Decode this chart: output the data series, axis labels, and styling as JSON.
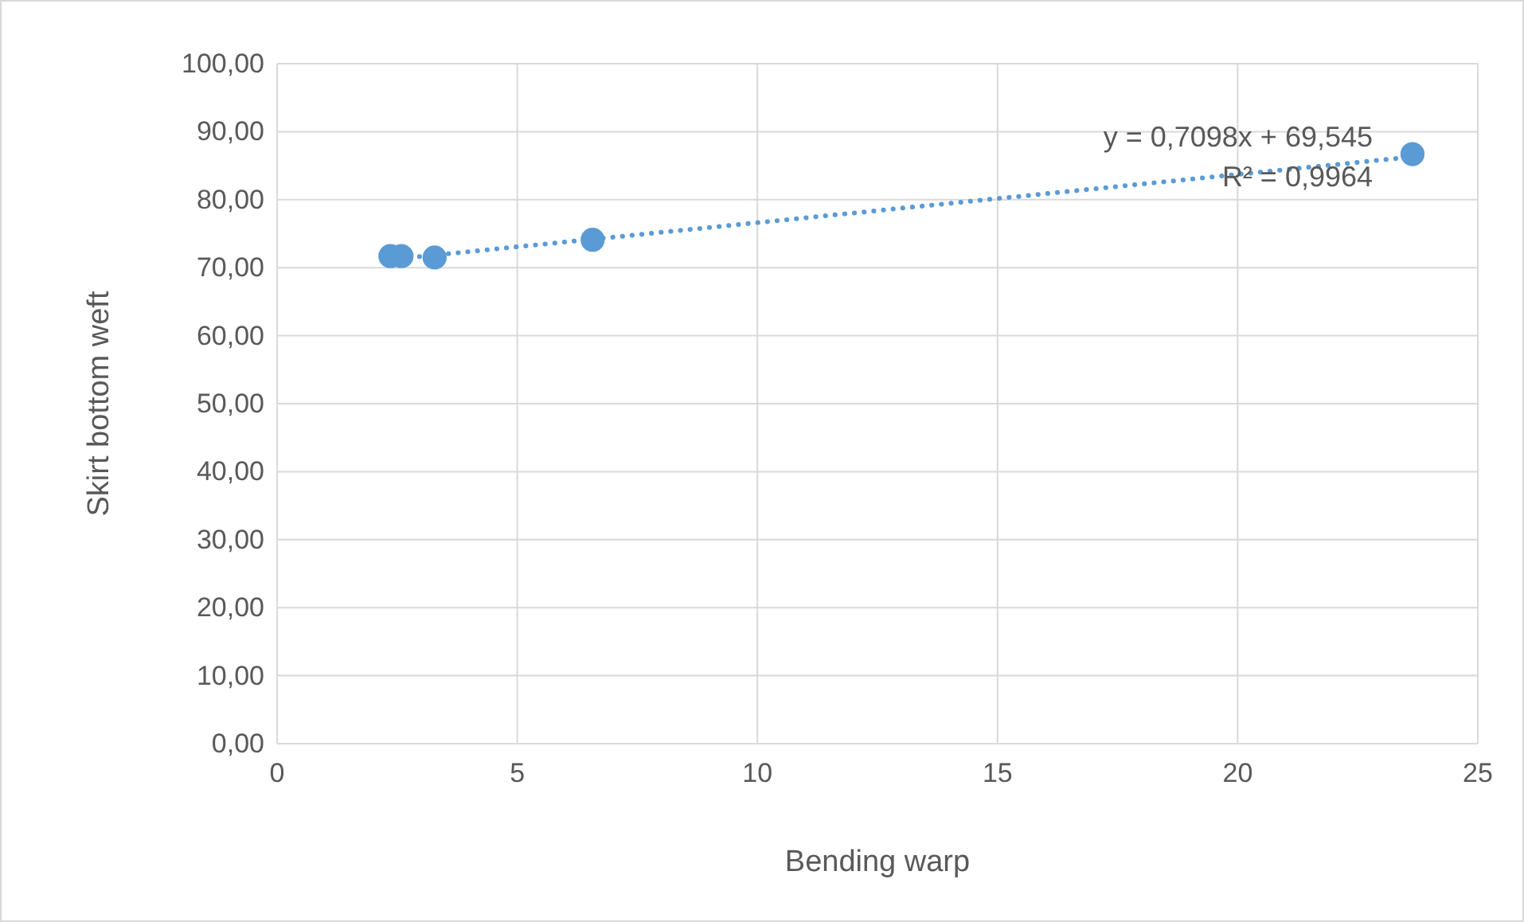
{
  "chart_data": {
    "type": "scatter",
    "xlabel": "Bending warp",
    "ylabel": "Skirt bottom weft",
    "xlim": [
      0,
      25
    ],
    "xticks": [
      0,
      5,
      10,
      15,
      20,
      25
    ],
    "ylim": [
      0,
      100
    ],
    "yticks": [
      {
        "value": 0,
        "label": "0,00"
      },
      {
        "value": 10,
        "label": "10,00"
      },
      {
        "value": 20,
        "label": "20,00"
      },
      {
        "value": 30,
        "label": "30,00"
      },
      {
        "value": 40,
        "label": "40,00"
      },
      {
        "value": 50,
        "label": "50,00"
      },
      {
        "value": 60,
        "label": "60,00"
      },
      {
        "value": 70,
        "label": "70,00"
      },
      {
        "value": 80,
        "label": "80,00"
      },
      {
        "value": 90,
        "label": "90,00"
      },
      {
        "value": 100,
        "label": "100,00"
      }
    ],
    "grid": true,
    "series": [
      {
        "marker": "circle",
        "color": "#5b9bd5",
        "x": [
          2.36,
          2.59,
          3.28,
          6.57,
          23.64
        ],
        "values": [
          71.7,
          71.7,
          71.5,
          74.1,
          86.7
        ]
      },
      {
        "type": "line",
        "color": "#5b9bd5",
        "line_style": "dotted",
        "x": [
          2.36,
          23.64
        ],
        "values": [
          71.2,
          86.3
        ]
      }
    ],
    "annotations": [
      "y = 0,7098x + 69,545",
      "R² = 0,9964"
    ]
  }
}
